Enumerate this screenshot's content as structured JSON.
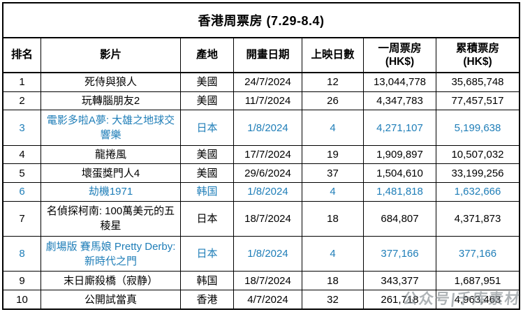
{
  "title": "香港周票房 (7.29-8.4)",
  "watermark": "公众号|千库素材",
  "colors": {
    "text": "#000000",
    "highlight_blue": "#1F7EB8",
    "border": "#000000",
    "watermark_gray": "#7d858b",
    "background": "#ffffff"
  },
  "table": {
    "headers": [
      {
        "line1": "排名",
        "line2": ""
      },
      {
        "line1": "影片",
        "line2": ""
      },
      {
        "line1": "產地",
        "line2": ""
      },
      {
        "line1": "開畫日期",
        "line2": ""
      },
      {
        "line1": "上映日數",
        "line2": ""
      },
      {
        "line1": "一周票房",
        "line2": "(HK$)"
      },
      {
        "line1": "累積票房",
        "line2": "(HK$)"
      }
    ],
    "rows": [
      {
        "rank": "1",
        "film": "死侍與狼人",
        "origin": "美國",
        "date": "24/7/2024",
        "days": "12",
        "weekly": "13,044,778",
        "cumulative": "35,685,748",
        "highlighted": false
      },
      {
        "rank": "2",
        "film": "玩轉腦朋友2",
        "origin": "美國",
        "date": "11/7/2024",
        "days": "26",
        "weekly": "4,347,783",
        "cumulative": "77,457,517",
        "highlighted": false
      },
      {
        "rank": "3",
        "film": "電影多啦A夢: 大雄之地球交響樂",
        "origin": "日本",
        "date": "1/8/2024",
        "days": "4",
        "weekly": "4,271,107",
        "cumulative": "5,199,638",
        "highlighted": true
      },
      {
        "rank": "4",
        "film": "龍捲風",
        "origin": "美國",
        "date": "17/7/2024",
        "days": "19",
        "weekly": "1,909,897",
        "cumulative": "10,507,032",
        "highlighted": false
      },
      {
        "rank": "5",
        "film": "壞蛋獎門人4",
        "origin": "美國",
        "date": "29/6/2024",
        "days": "37",
        "weekly": "1,504,610",
        "cumulative": "33,199,256",
        "highlighted": false
      },
      {
        "rank": "6",
        "film": "劫機1971",
        "origin": "韩国",
        "date": "1/8/2024",
        "days": "4",
        "weekly": "1,481,818",
        "cumulative": "1,632,666",
        "highlighted": true
      },
      {
        "rank": "7",
        "film": "名偵探柯南: 100萬美元的五稜星",
        "origin": "日本",
        "date": "18/7/2024",
        "days": "18",
        "weekly": "684,807",
        "cumulative": "4,371,873",
        "highlighted": false
      },
      {
        "rank": "8",
        "film": "劇場版 賽馬娘 Pretty Derby: 新時代之門",
        "origin": "日本",
        "date": "1/8/2024",
        "days": "4",
        "weekly": "377,166",
        "cumulative": "377,166",
        "highlighted": true
      },
      {
        "rank": "9",
        "film": "末日廝殺橋（寂静）",
        "origin": "韩国",
        "date": "18/7/2024",
        "days": "18",
        "weekly": "343,377",
        "cumulative": "1,687,951",
        "highlighted": false
      },
      {
        "rank": "10",
        "film": "公開試當真",
        "origin": "香港",
        "date": "4/7/2024",
        "days": "32",
        "weekly": "261,718",
        "cumulative": "4,963,463",
        "highlighted": false
      }
    ]
  }
}
